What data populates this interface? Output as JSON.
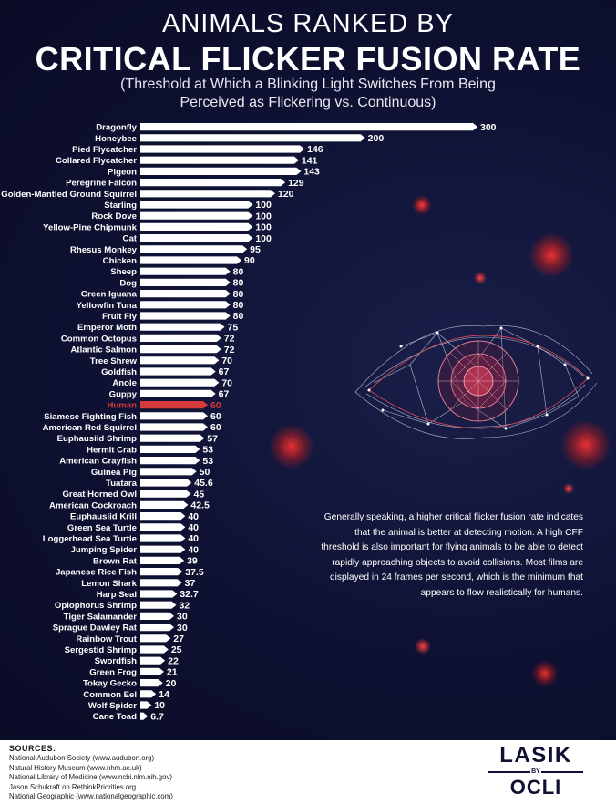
{
  "header": {
    "title_top": "ANIMALS RANKED BY",
    "title_main": "CRITICAL FLICKER FUSION RATE",
    "subtitle": "(Threshold at Which a Blinking Light Switches From Being Perceived as Flickering vs. Continuous)"
  },
  "chart_data": {
    "type": "bar",
    "orientation": "horizontal",
    "highlight_category": "Human",
    "highlight_color": "#d63b3b",
    "bar_color": "#ffffff",
    "categories": [
      "Dragonfly",
      "Honeybee",
      "Pied Flycatcher",
      "Collared Flycatcher",
      "Pigeon",
      "Peregrine Falcon",
      "Golden-Mantled Ground Squirrel",
      "Starling",
      "Rock Dove",
      "Yellow-Pine Chipmunk",
      "Cat",
      "Rhesus Monkey",
      "Chicken",
      "Sheep",
      "Dog",
      "Green Iguana",
      "Yellowfin Tuna",
      "Fruit Fly",
      "Emperor Moth",
      "Common Octopus",
      "Atlantic Salmon",
      "Tree Shrew",
      "Goldfish",
      "Anole",
      "Guppy",
      "Human",
      "Siamese Fighting Fish",
      "American Red Squirrel",
      "Euphausiid Shrimp",
      "Hermit Crab",
      "American Crayfish",
      "Guinea Pig",
      "Tuatara",
      "Great Horned Owl",
      "American Cockroach",
      "Euphausiid Krill",
      "Green Sea Turtle",
      "Loggerhead Sea Turtle",
      "Jumping Spider",
      "Brown Rat",
      "Japanese Rice Fish",
      "Lemon Shark",
      "Harp Seal",
      "Oplophorus Shrimp",
      "Tiger Salamander",
      "Sprague Dawley Rat",
      "Rainbow Trout",
      "Sergestid Shrimp",
      "Swordfish",
      "Green Frog",
      "Tokay Gecko",
      "Common Eel",
      "Wolf Spider",
      "Cane Toad"
    ],
    "values": [
      300,
      200,
      146,
      141,
      143,
      129,
      120,
      100,
      100,
      100,
      100,
      95,
      90,
      80,
      80,
      80,
      80,
      80,
      75,
      72,
      72,
      70,
      67,
      70,
      67,
      60,
      60,
      60,
      57,
      53,
      53,
      50,
      45.6,
      45,
      42.5,
      40,
      40,
      40,
      40,
      39,
      37.5,
      37,
      32.7,
      32,
      30,
      30,
      27,
      25,
      22,
      21,
      20,
      14,
      10,
      6.7
    ],
    "value_labels": [
      "300",
      "200",
      "146",
      "141",
      "143",
      "129",
      "120",
      "100",
      "100",
      "100",
      "100",
      "95",
      "90",
      "80",
      "80",
      "80",
      "80",
      "80",
      "75",
      "72",
      "72",
      "70",
      "67",
      "70",
      "67",
      "60",
      "60",
      "60",
      "57",
      "53",
      "53",
      "50",
      "45.6",
      "45",
      "42.5",
      "40",
      "40",
      "40",
      "40",
      "39",
      "37.5",
      "37",
      "32.7",
      "32",
      "30",
      "30",
      "27",
      "25",
      "22",
      "21",
      "20",
      "14",
      "10",
      "6.7"
    ]
  },
  "note": "Generally speaking, a higher critical flicker fusion rate indicates that the animal is better at detecting motion. A high CFF threshold is also important for flying animals to be able to detect rapidly approaching objects to avoid collisions. Most films are displayed in 24 frames per second, which is the minimum that appears to flow realistically for humans.",
  "footer": {
    "sources_title": "SOURCES:",
    "sources": [
      "National Audubon Society (www.audubon.org)",
      "Natural History Museum (www.nhm.ac.uk)",
      "National Library of Medicine (www.ncbi.nlm.nih.gov)",
      "Jason Schukraft on RethinkPriorities.org",
      "National Geographic (www.nationalgeographic.com)"
    ],
    "logo_top": "LASIK",
    "logo_by": "BY",
    "logo_bottom": "OCLI"
  },
  "decor": {
    "eye_icon": "eye-icon",
    "glow_color": "#e03030"
  }
}
